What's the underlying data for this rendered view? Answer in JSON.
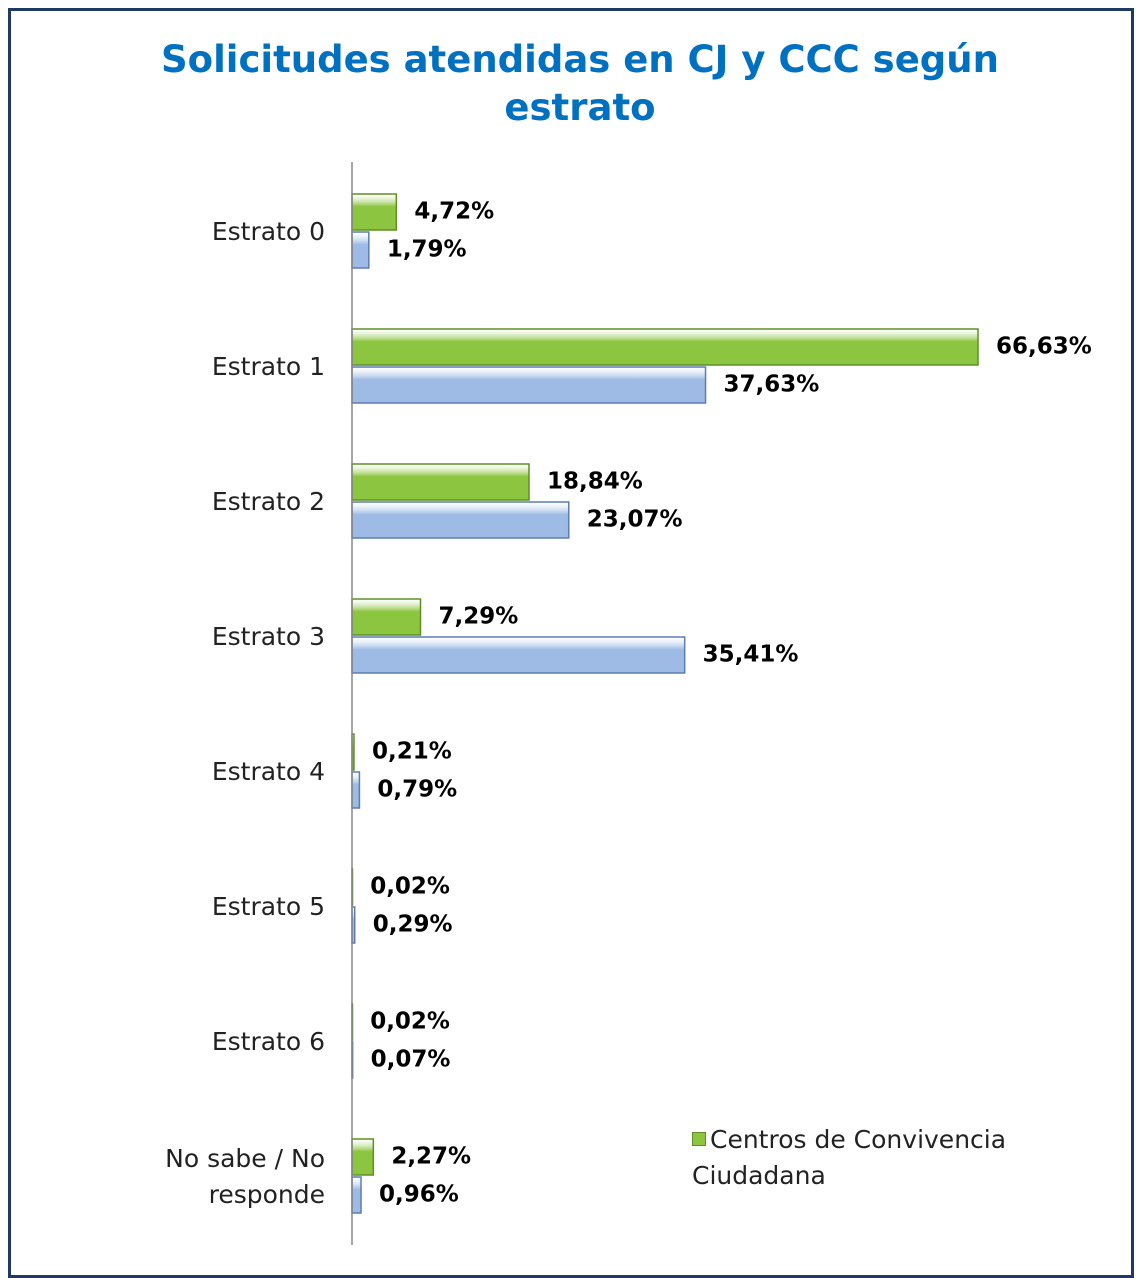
{
  "chart_data": {
    "type": "hbar",
    "title": "Solicitudes atendidas en CJ y CCC según estrato",
    "categories": [
      "Estrato 0",
      "Estrato 1",
      "Estrato 2",
      "Estrato 3",
      "Estrato 4",
      "Estrato 5",
      "Estrato 6",
      "No sabe / No responde"
    ],
    "series": [
      {
        "name": "Centros de Convivencia Ciudadana",
        "color": "#8cc540",
        "values": [
          4.72,
          66.63,
          18.84,
          7.29,
          0.21,
          0.02,
          0.02,
          2.27
        ],
        "value_labels": [
          "4,72%",
          "66,63%",
          "18,84%",
          "7,29%",
          "0,21%",
          "0,02%",
          "0,02%",
          "2,27%"
        ]
      },
      {
        "color": "#9dbbe4",
        "values": [
          1.79,
          37.63,
          23.07,
          35.41,
          0.79,
          0.29,
          0.07,
          0.96
        ],
        "value_labels": [
          "1,79%",
          "37,63%",
          "23,07%",
          "35,41%",
          "0,79%",
          "0,29%",
          "0,07%",
          "0,96%"
        ]
      }
    ],
    "legend": "lower right"
  }
}
